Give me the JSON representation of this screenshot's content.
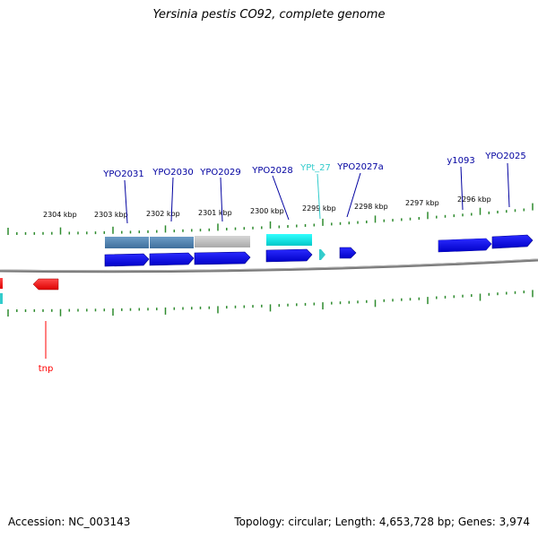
{
  "title": "Yersinia pestis CO92, complete genome",
  "footer": {
    "accession": "Accession: NC_003143",
    "topology": "Topology: circular; Length: 4,653,728 bp; Genes: 3,974"
  },
  "colors": {
    "tick": "#2e8b2e",
    "backbone": "#808080",
    "gene": "#0000e6",
    "trna": "#33cccc",
    "trna_label": "#33cccc",
    "tnp": "#ff0000",
    "label": "#0000a0"
  },
  "scale": {
    "ticks": [
      "2304 kbp",
      "2303 kbp",
      "2302 kbp",
      "2301 kbp",
      "2300 kbp",
      "2299 kbp",
      "2298 kbp",
      "2297 kbp",
      "2296 kbp"
    ]
  },
  "features": [
    {
      "label": "YPO2031",
      "type": "gene",
      "strand": "+"
    },
    {
      "label": "YPO2030",
      "type": "gene",
      "strand": "+"
    },
    {
      "label": "YPO2029",
      "type": "gene",
      "strand": "+"
    },
    {
      "label": "YPO2028",
      "type": "gene",
      "strand": "+"
    },
    {
      "label": "YPt_27",
      "type": "tRNA",
      "strand": "+"
    },
    {
      "label": "YPO2027a",
      "type": "gene",
      "strand": "+"
    },
    {
      "label": "y1093",
      "type": "gene",
      "strand": "+"
    },
    {
      "label": "YPO2025",
      "type": "gene",
      "strand": "+"
    },
    {
      "label": "tnp",
      "type": "transposase",
      "strand": "-"
    }
  ]
}
